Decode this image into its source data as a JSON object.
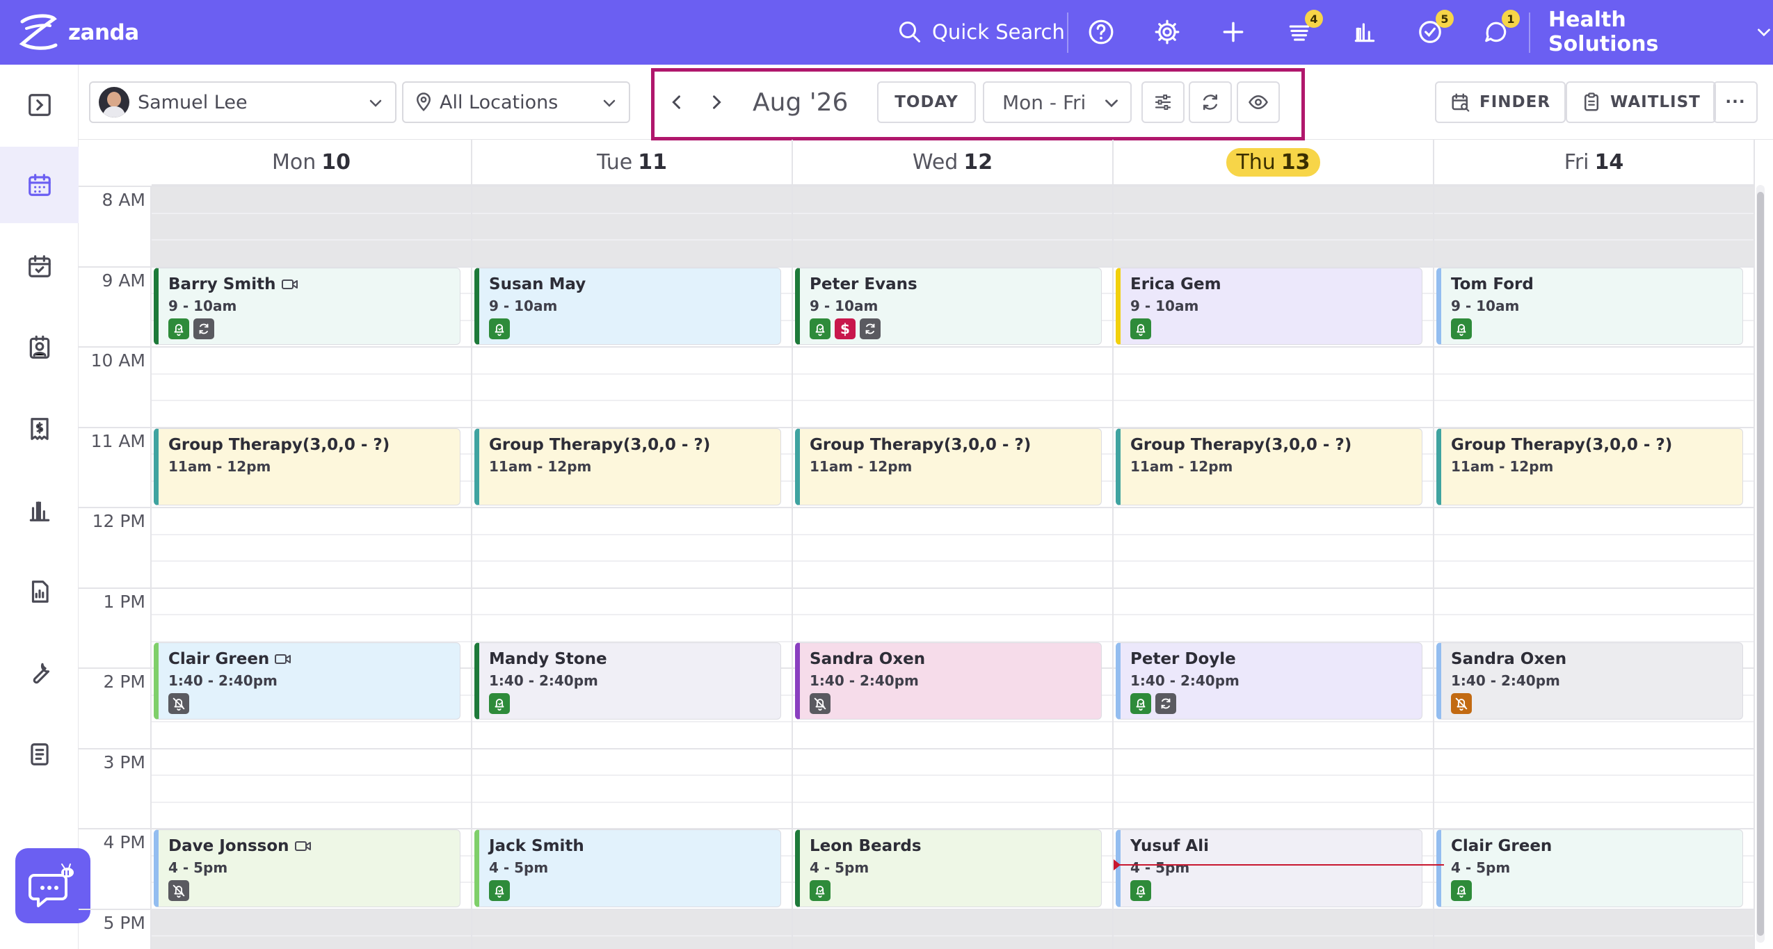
{
  "topbar": {
    "logo_text": "zanda",
    "quick_search_label": "Quick Search",
    "badges": {
      "tasks": "4",
      "checks": "5",
      "messages": "1"
    },
    "org_name": "Health Solutions"
  },
  "toolbar": {
    "practitioner": "Samuel Lee",
    "location": "All Locations",
    "month": "Aug '26",
    "today_label": "TODAY",
    "view_range": "Mon - Fri",
    "finder_label": "FINDER",
    "waitlist_label": "WAITLIST",
    "more_label": "···"
  },
  "calendar": {
    "days": [
      {
        "dow": "Mon",
        "num": "10",
        "today": false
      },
      {
        "dow": "Tue",
        "num": "11",
        "today": false
      },
      {
        "dow": "Wed",
        "num": "12",
        "today": false
      },
      {
        "dow": "Thu",
        "num": "13",
        "today": true
      },
      {
        "dow": "Fri",
        "num": "14",
        "today": false
      }
    ],
    "hours": [
      "8 AM",
      "9 AM",
      "10 AM",
      "11 AM",
      "12 PM",
      "1 PM",
      "2 PM",
      "3 PM",
      "4 PM",
      "5 PM"
    ],
    "appointments": [
      {
        "day": 0,
        "name": "Barry Smith",
        "time": "9 - 10am",
        "start": 9,
        "end": 10,
        "video": true,
        "bg": "#eef8f5",
        "bar": "#1e7a3a",
        "icons": [
          "bell-green",
          "sync-gray"
        ]
      },
      {
        "day": 1,
        "name": "Susan May",
        "time": "9 - 10am",
        "start": 9,
        "end": 10,
        "video": false,
        "bg": "#e2f2fc",
        "bar": "#1e7a3a",
        "icons": [
          "bell-green"
        ]
      },
      {
        "day": 2,
        "name": "Peter Evans",
        "time": "9 - 10am",
        "start": 9,
        "end": 10,
        "video": false,
        "bg": "#eef8f5",
        "bar": "#1e7a3a",
        "icons": [
          "bell-green",
          "dollar-red",
          "sync-gray"
        ]
      },
      {
        "day": 3,
        "name": "Erica Gem",
        "time": "9 - 10am",
        "start": 9,
        "end": 10,
        "video": false,
        "bg": "#ece8fb",
        "bar": "#f2d00c",
        "icons": [
          "bell-green"
        ]
      },
      {
        "day": 4,
        "name": "Tom Ford",
        "time": "9 - 10am",
        "start": 9,
        "end": 10,
        "video": false,
        "bg": "#eef8f5",
        "bar": "#93bdf0",
        "icons": [
          "bell-green"
        ]
      },
      {
        "day": 0,
        "name": "Group Therapy(3,0,0 - ?)",
        "time": "11am - 12pm",
        "start": 11,
        "end": 12,
        "video": false,
        "bg": "#fdf7dc",
        "bar": "#3fa3a0",
        "icons": []
      },
      {
        "day": 1,
        "name": "Group Therapy(3,0,0 - ?)",
        "time": "11am - 12pm",
        "start": 11,
        "end": 12,
        "video": false,
        "bg": "#fdf7dc",
        "bar": "#3fa3a0",
        "icons": []
      },
      {
        "day": 2,
        "name": "Group Therapy(3,0,0 - ?)",
        "time": "11am - 12pm",
        "start": 11,
        "end": 12,
        "video": false,
        "bg": "#fdf7dc",
        "bar": "#3fa3a0",
        "icons": []
      },
      {
        "day": 3,
        "name": "Group Therapy(3,0,0 - ?)",
        "time": "11am - 12pm",
        "start": 11,
        "end": 12,
        "video": false,
        "bg": "#fdf7dc",
        "bar": "#3fa3a0",
        "icons": []
      },
      {
        "day": 4,
        "name": "Group Therapy(3,0,0 - ?)",
        "time": "11am - 12pm",
        "start": 11,
        "end": 12,
        "video": false,
        "bg": "#fdf7dc",
        "bar": "#3fa3a0",
        "icons": []
      },
      {
        "day": 0,
        "name": "Clair Green",
        "time": "1:40 - 2:40pm",
        "start": 13.667,
        "end": 14.667,
        "video": true,
        "bg": "#e2f2fc",
        "bar": "#7fcf6a",
        "icons": [
          "bell-off-gray"
        ]
      },
      {
        "day": 1,
        "name": "Mandy Stone",
        "time": "1:40 - 2:40pm",
        "start": 13.667,
        "end": 14.667,
        "video": false,
        "bg": "#f0eff6",
        "bar": "#1e7a3a",
        "icons": [
          "bell-green"
        ]
      },
      {
        "day": 2,
        "name": "Sandra Oxen",
        "time": "1:40 - 2:40pm",
        "start": 13.667,
        "end": 14.667,
        "video": false,
        "bg": "#f6dcea",
        "bar": "#8a3fc0",
        "icons": [
          "bell-off-gray"
        ]
      },
      {
        "day": 3,
        "name": "Peter Doyle",
        "time": "1:40 - 2:40pm",
        "start": 13.667,
        "end": 14.667,
        "video": false,
        "bg": "#ece8fb",
        "bar": "#93bdf0",
        "icons": [
          "bell-green",
          "sync-gray"
        ]
      },
      {
        "day": 4,
        "name": "Sandra Oxen",
        "time": "1:40 - 2:40pm",
        "start": 13.667,
        "end": 14.667,
        "video": false,
        "bg": "#ececef",
        "bar": "#93bdf0",
        "icons": [
          "bell-off-orange"
        ]
      },
      {
        "day": 0,
        "name": "Dave Jonsson",
        "time": "4 - 5pm",
        "start": 16,
        "end": 17,
        "video": true,
        "bg": "#eef7e6",
        "bar": "#93bdf0",
        "icons": [
          "bell-off-gray"
        ]
      },
      {
        "day": 1,
        "name": "Jack Smith",
        "time": "4 - 5pm",
        "start": 16,
        "end": 17,
        "video": false,
        "bg": "#e2f2fc",
        "bar": "#7fcf6a",
        "icons": [
          "bell-green"
        ]
      },
      {
        "day": 2,
        "name": "Leon Beards",
        "time": "4 - 5pm",
        "start": 16,
        "end": 17,
        "video": false,
        "bg": "#eef7e6",
        "bar": "#1e7a3a",
        "icons": [
          "bell-green"
        ]
      },
      {
        "day": 3,
        "name": "Yusuf Ali",
        "time": "4 - 5pm",
        "start": 16,
        "end": 17,
        "video": false,
        "bg": "#f0eff6",
        "bar": "#93bdf0",
        "icons": [
          "bell-green"
        ]
      },
      {
        "day": 4,
        "name": "Clair Green",
        "time": "4 - 5pm",
        "start": 16,
        "end": 17,
        "video": false,
        "bg": "#eef8f5",
        "bar": "#93bdf0",
        "icons": [
          "bell-green"
        ]
      }
    ],
    "current_time": 16.45
  },
  "colors": {
    "brand": "#6b5ff2",
    "highlight": "#b0176c",
    "today_badge": "#f7d548",
    "now_line": "#c8172f"
  }
}
